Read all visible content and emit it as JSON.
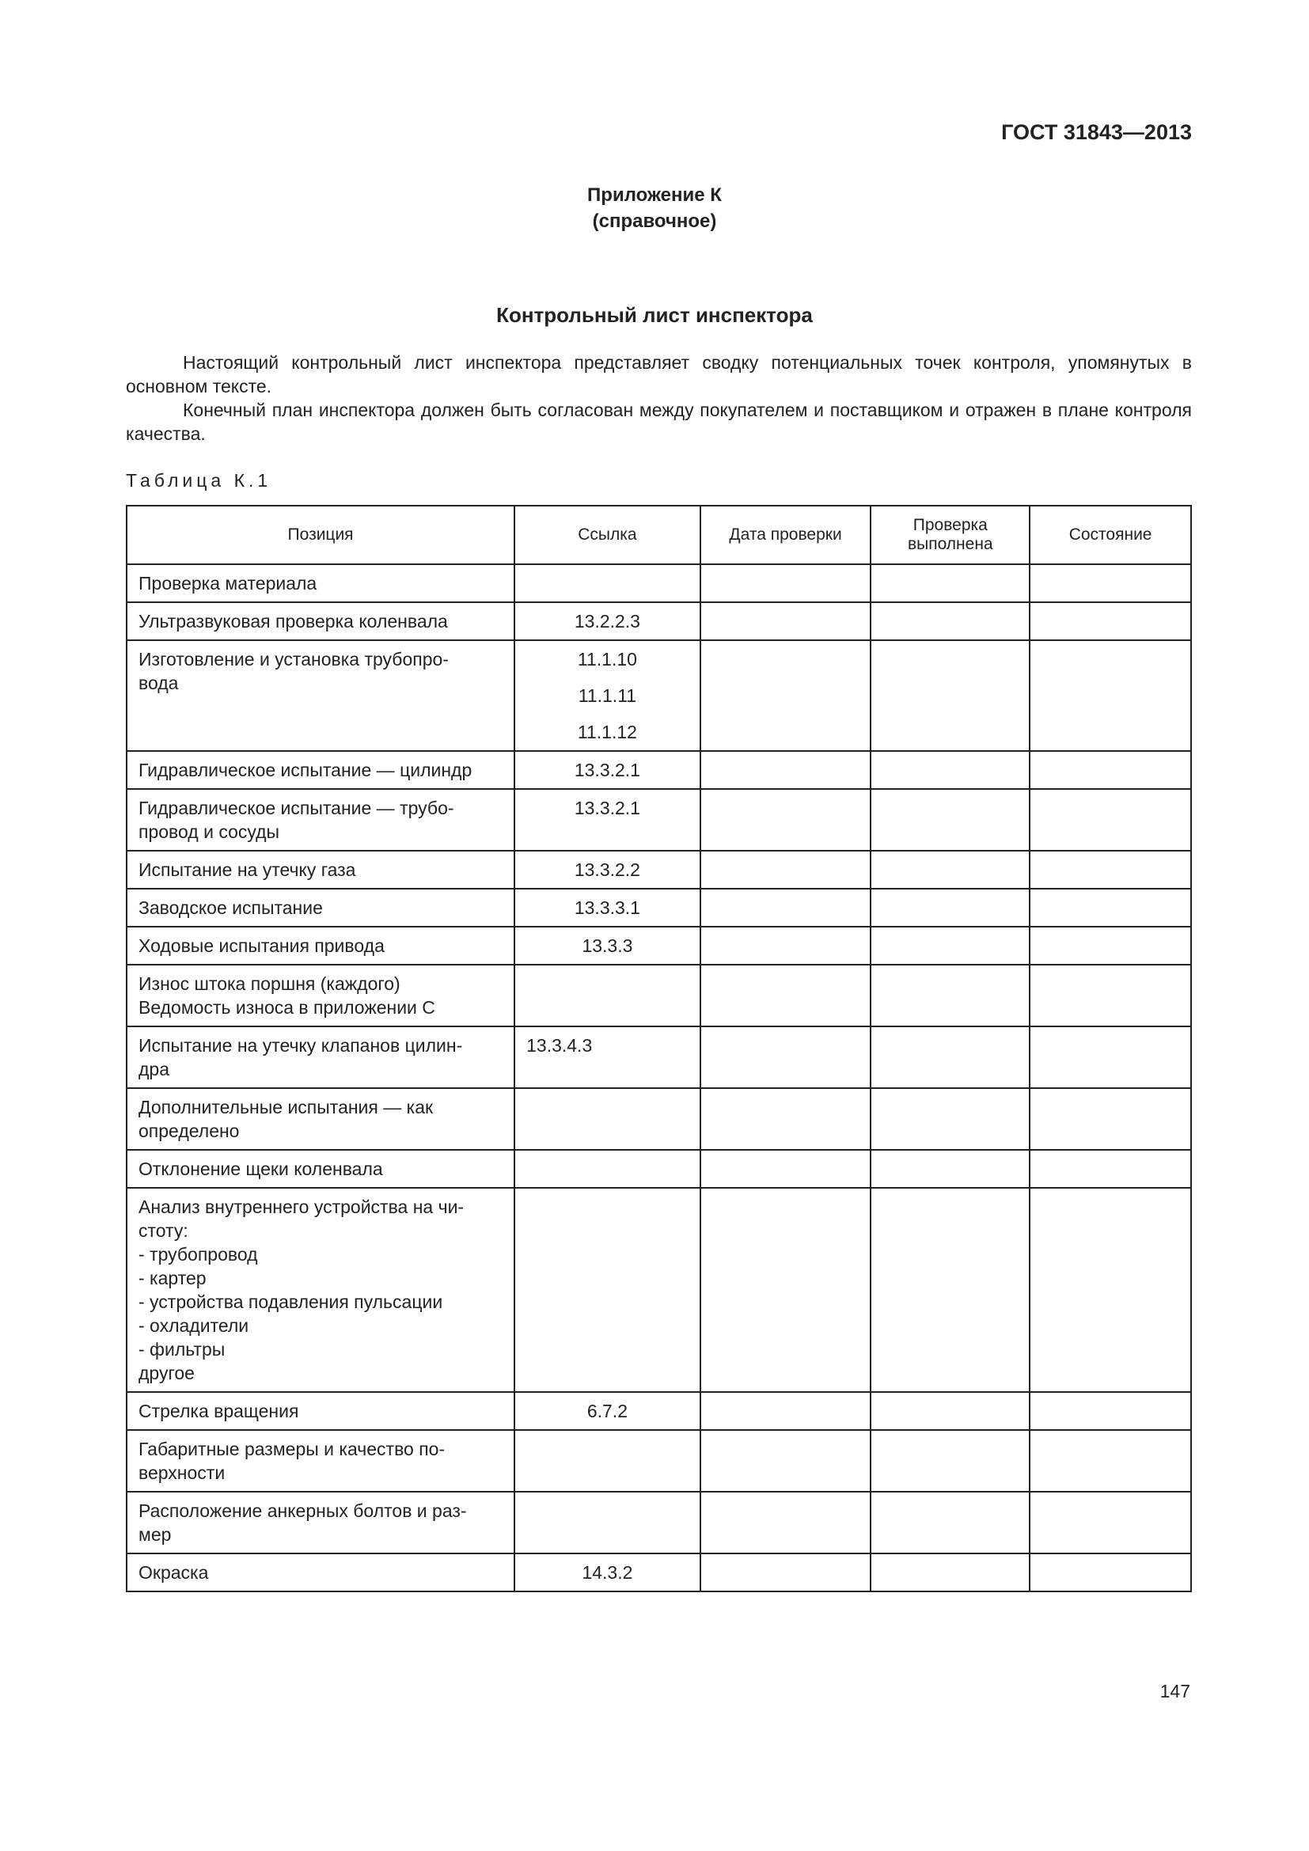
{
  "header": {
    "standard": "ГОСТ 31843—2013"
  },
  "appendix": {
    "title": "Приложение К",
    "note": "(справочное)"
  },
  "heading": "Контрольный лист инспектора",
  "paragraphs": [
    "Настоящий контрольный лист инспектора представляет сводку потенциальных точек контроля, упомянутых в основном тексте.",
    "Конечный план инспектора должен быть согласован между покупателем и поставщиком и отражен в плане контроля качества."
  ],
  "table": {
    "caption": "Таблица К.1",
    "columns": [
      "Позиция",
      "Ссылка",
      "Дата проверки",
      "Проверка выполнена",
      "Состояние"
    ],
    "rows": [
      {
        "position": [
          "Проверка материала"
        ],
        "refs": []
      },
      {
        "position": [
          "Ультразвуковая проверка коленвала"
        ],
        "refs": [
          "13.2.2.3"
        ]
      },
      {
        "position": [
          "Изготовление и установка трубопро-",
          "вода"
        ],
        "refs": [
          "11.1.10",
          "11.1.11",
          "11.1.12"
        ]
      },
      {
        "position": [
          "Гидравлическое испытание — цилиндр"
        ],
        "refs": [
          "13.3.2.1"
        ]
      },
      {
        "position": [
          "Гидравлическое испытание — трубо-",
          "провод и сосуды"
        ],
        "refs": [
          "13.3.2.1"
        ]
      },
      {
        "position": [
          "Испытание на утечку газа"
        ],
        "refs": [
          "13.3.2.2"
        ]
      },
      {
        "position": [
          "Заводское испытание"
        ],
        "refs": [
          "13.3.3.1"
        ]
      },
      {
        "position": [
          "Ходовые испытания привода"
        ],
        "refs": [
          "13.3.3"
        ]
      },
      {
        "position": [
          "Износ штока поршня (каждого)",
          "Ведомость износа в приложении С"
        ],
        "refs": []
      },
      {
        "position": [
          "Испытание на утечку клапанов цилин-",
          "дра"
        ],
        "refs": [
          "13.3.4.3"
        ]
      },
      {
        "position": [
          "Дополнительные испытания — как",
          "определено"
        ],
        "refs": []
      },
      {
        "position": [
          "Отклонение щеки коленвала"
        ],
        "refs": []
      },
      {
        "position": [
          "Анализ внутреннего устройства на чи-",
          "стоту:",
          "- трубопровод",
          "- картер",
          "- устройства подавления пульсации",
          "- охладители",
          "- фильтры",
          "другое"
        ],
        "refs": []
      },
      {
        "position": [
          "Стрелка вращения"
        ],
        "refs": [
          "6.7.2"
        ]
      },
      {
        "position": [
          "Габаритные размеры и качество по-",
          "верхности"
        ],
        "refs": []
      },
      {
        "position": [
          "Расположение анкерных болтов и раз-",
          "мер"
        ],
        "refs": []
      },
      {
        "position": [
          "Окраска"
        ],
        "refs": [
          "14.3.2"
        ]
      }
    ]
  },
  "page_number": "147"
}
